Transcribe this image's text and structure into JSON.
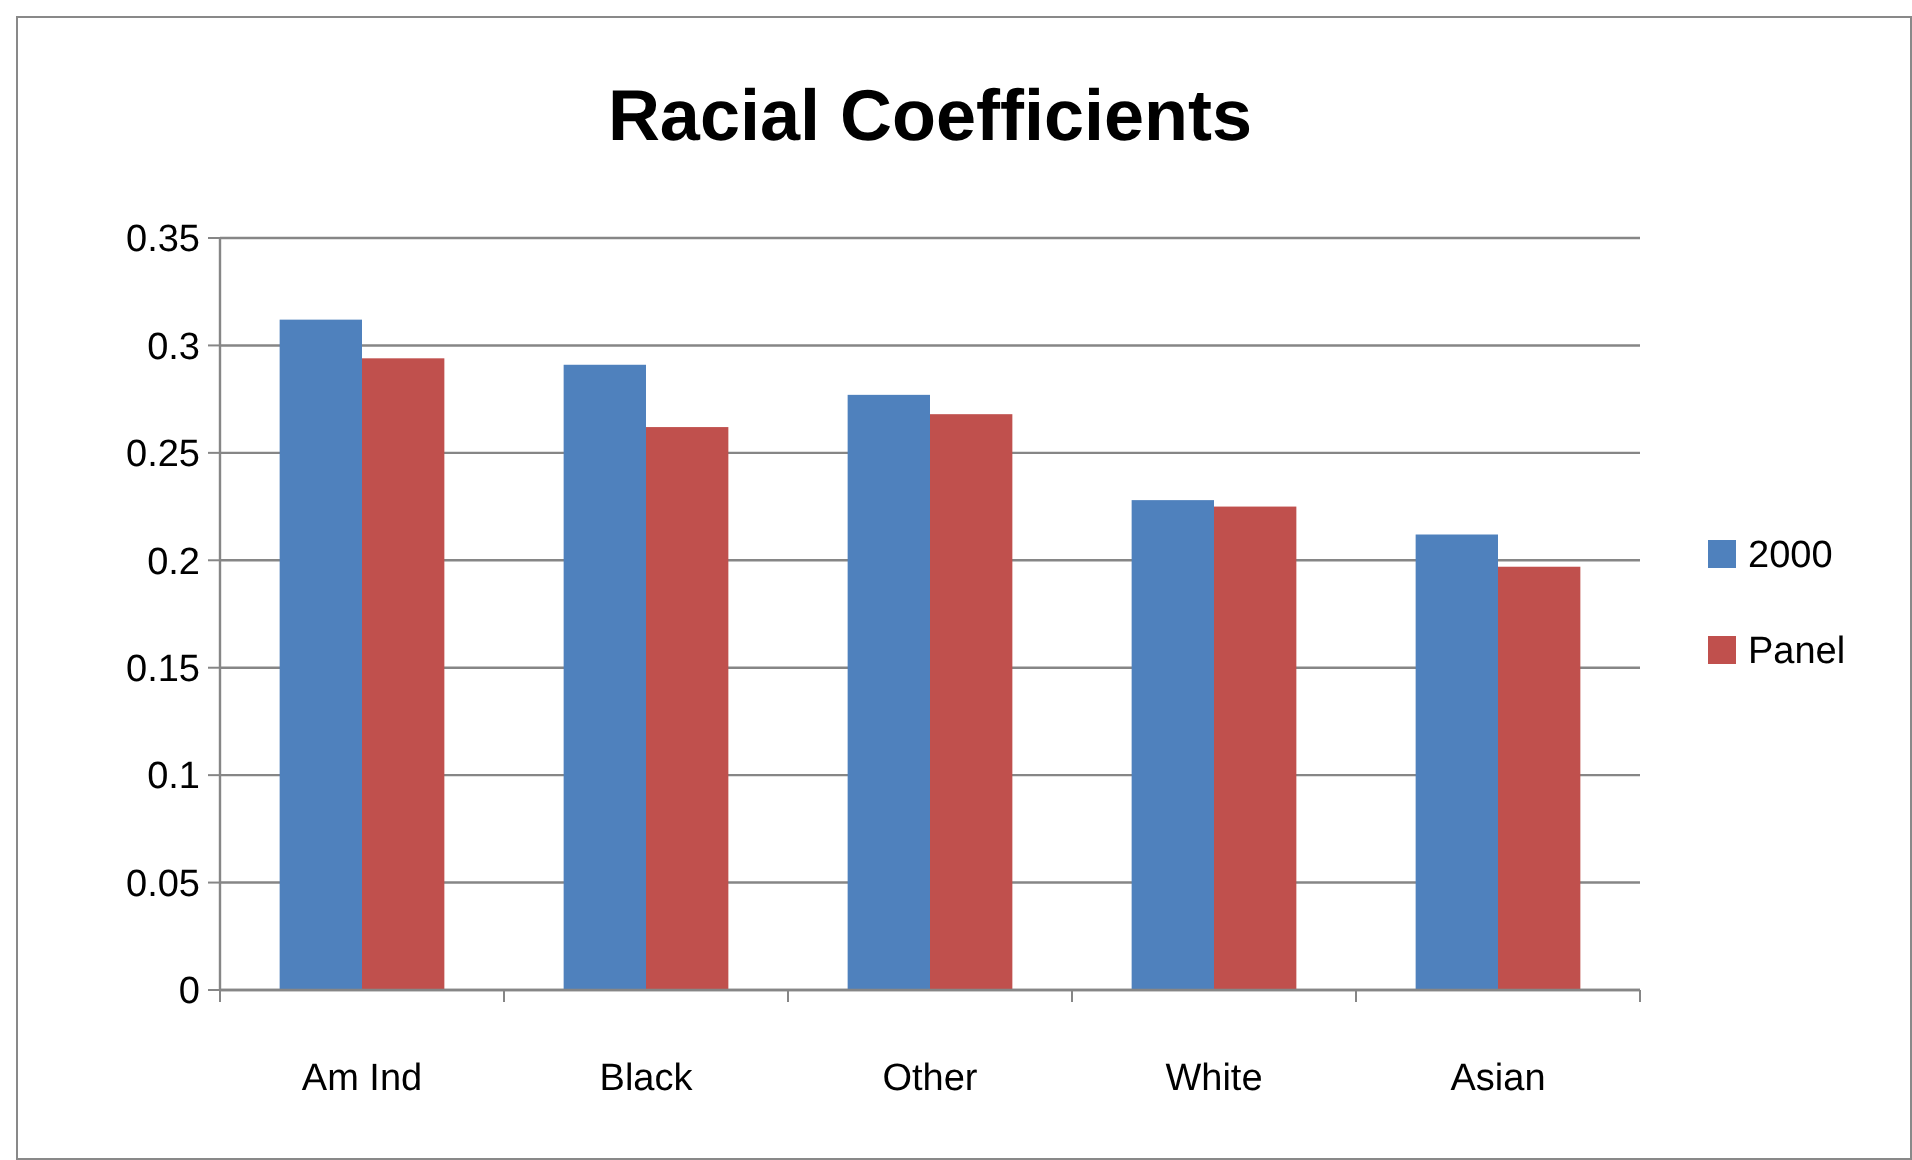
{
  "chart_data": {
    "type": "bar",
    "title": "Racial Coefficients",
    "categories": [
      "Am Ind",
      "Black",
      "Other",
      "White",
      "Asian"
    ],
    "series": [
      {
        "name": "2000",
        "color": "#4f81bd",
        "values": [
          0.312,
          0.291,
          0.277,
          0.228,
          0.212
        ]
      },
      {
        "name": "Panel",
        "color": "#c0504d",
        "values": [
          0.294,
          0.262,
          0.268,
          0.225,
          0.197
        ]
      }
    ],
    "ylim": [
      0,
      0.35
    ],
    "yticks": [
      0,
      0.05,
      0.1,
      0.15,
      0.2,
      0.25,
      0.3,
      0.35
    ],
    "grid": "y",
    "legend": "right"
  }
}
